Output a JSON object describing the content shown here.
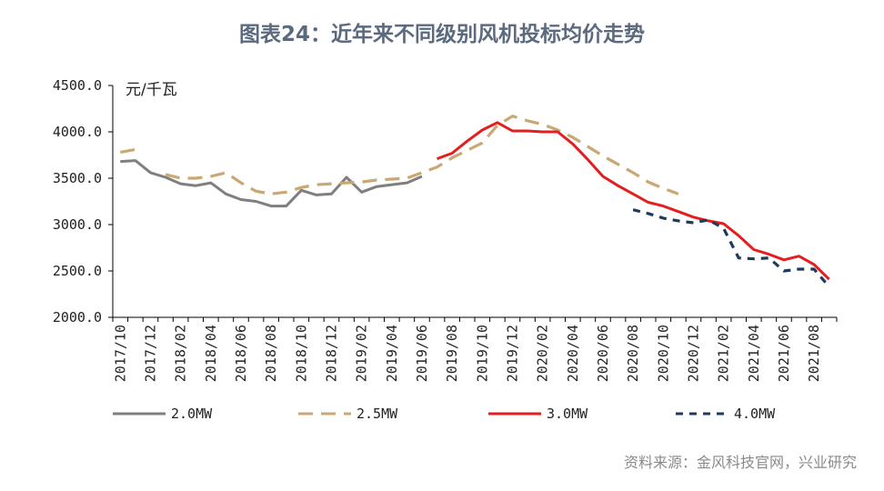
{
  "title": "图表24：近年来不同级别风机投标均价走势",
  "source": "资料来源：金风科技官网，兴业研究",
  "chart_data": {
    "type": "line",
    "ylabel": "元/千瓦",
    "ylim": [
      2000,
      4500
    ],
    "yticks": [
      "2000.0",
      "2500.0",
      "3000.0",
      "3500.0",
      "4000.0",
      "4500.0"
    ],
    "x": [
      "2017/10",
      "2017/11",
      "2017/12",
      "2018/01",
      "2018/02",
      "2018/03",
      "2018/04",
      "2018/05",
      "2018/06",
      "2018/07",
      "2018/08",
      "2018/09",
      "2018/10",
      "2018/11",
      "2018/12",
      "2019/01",
      "2019/02",
      "2019/03",
      "2019/04",
      "2019/05",
      "2019/06",
      "2019/07",
      "2019/08",
      "2019/09",
      "2019/10",
      "2019/11",
      "2019/12",
      "2020/01",
      "2020/02",
      "2020/03",
      "2020/04",
      "2020/05",
      "2020/06",
      "2020/07",
      "2020/08",
      "2020/09",
      "2020/10",
      "2020/11",
      "2020/12",
      "2021/01",
      "2021/02",
      "2021/03",
      "2021/04",
      "2021/05",
      "2021/06",
      "2021/07",
      "2021/08",
      "2021/09"
    ],
    "xtick_labels": [
      "2017/10",
      "2017/12",
      "2018/02",
      "2018/04",
      "2018/06",
      "2018/08",
      "2018/10",
      "2018/12",
      "2019/02",
      "2019/04",
      "2019/06",
      "2019/08",
      "2019/10",
      "2019/12",
      "2020/02",
      "2020/04",
      "2020/06",
      "2020/08",
      "2020/10",
      "2020/12",
      "2021/02",
      "2021/04",
      "2021/06",
      "2021/08"
    ],
    "series": [
      {
        "name": "2.0MW",
        "color": "#7f7f7f",
        "dash": "solid",
        "values": [
          3680,
          3690,
          3560,
          3510,
          3440,
          3420,
          3450,
          3330,
          3270,
          3250,
          3200,
          3200,
          3370,
          3320,
          3330,
          3510,
          3350,
          3410,
          3430,
          3450,
          3520,
          null,
          null,
          null,
          null,
          null,
          null,
          null,
          null,
          null,
          null,
          null,
          null,
          null,
          null,
          null,
          null,
          null,
          null,
          null,
          null,
          null,
          null,
          null,
          null,
          null,
          null,
          null
        ]
      },
      {
        "name": "2.5MW",
        "color": "#c9a873",
        "dash": "long",
        "values": [
          3780,
          3810,
          null,
          3540,
          3500,
          3500,
          3520,
          3560,
          3450,
          3360,
          3330,
          3350,
          3400,
          3430,
          3440,
          3450,
          3460,
          3480,
          3490,
          3500,
          3560,
          3620,
          3720,
          3800,
          3880,
          4070,
          4170,
          4120,
          4080,
          4020,
          3940,
          3840,
          3740,
          3650,
          3560,
          3460,
          3390,
          3330,
          null,
          null,
          null,
          null,
          null,
          null,
          null,
          null,
          null,
          null
        ]
      },
      {
        "name": "3.0MW",
        "color": "#e41e1e",
        "dash": "solid",
        "values": [
          null,
          null,
          null,
          null,
          null,
          null,
          null,
          null,
          null,
          null,
          null,
          null,
          null,
          null,
          null,
          null,
          null,
          null,
          null,
          null,
          null,
          3710,
          3770,
          3900,
          4020,
          4100,
          4010,
          4010,
          4000,
          4000,
          3870,
          3700,
          3520,
          3420,
          3330,
          3240,
          3200,
          3140,
          3080,
          3040,
          3010,
          2880,
          2730,
          2680,
          2620,
          2660,
          2570,
          2410
        ]
      },
      {
        "name": "4.0MW",
        "color": "#1f3b5c",
        "dash": "short",
        "values": [
          null,
          null,
          null,
          null,
          null,
          null,
          null,
          null,
          null,
          null,
          null,
          null,
          null,
          null,
          null,
          null,
          null,
          null,
          null,
          null,
          null,
          null,
          null,
          null,
          null,
          null,
          null,
          null,
          null,
          null,
          null,
          null,
          null,
          null,
          3160,
          3120,
          3070,
          3040,
          3020,
          3050,
          2960,
          2640,
          2630,
          2640,
          2500,
          2520,
          2520,
          2330
        ]
      }
    ],
    "legend": "bottom",
    "grid": false
  }
}
